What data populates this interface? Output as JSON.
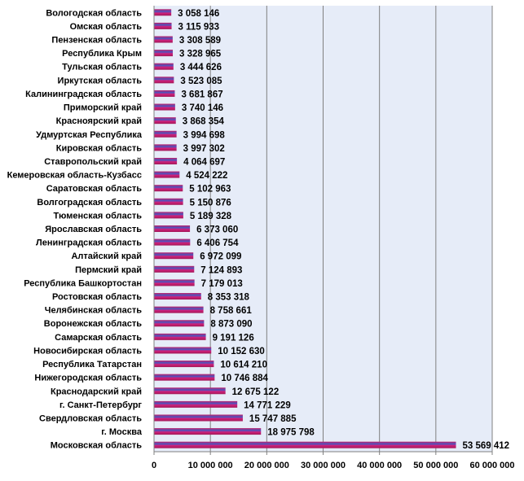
{
  "chart_data": {
    "type": "bar",
    "orientation": "horizontal",
    "title": "",
    "xlabel": "",
    "ylabel": "",
    "xlim": [
      0,
      60000000
    ],
    "grid": true,
    "legend": "none",
    "colors": {
      "bar_main": "#c0206a",
      "bar_highlight": "#4a55c0",
      "plot_bg": "#e6ecf8",
      "grid": "#808080"
    },
    "ticks": [
      "0",
      "10 000 000",
      "20 000 000",
      "30 000 000",
      "40 000 000",
      "50 000 000",
      "60 000 000"
    ],
    "tick_values": [
      0,
      10000000,
      20000000,
      30000000,
      40000000,
      50000000,
      60000000
    ],
    "categories": [
      "Вологодская  область",
      "Омская  область",
      "Пензенская  область",
      "Республика  Крым",
      "Тульская  область",
      "Иркутская  область",
      "Калининградская  область",
      "Приморский  край",
      "Красноярский  край",
      "Удмуртская  Республика",
      "Кировская  область",
      "Ставропольский  край",
      "Кемеровская  область-Кузбасс",
      "Саратовская  область",
      "Волгоградская  область",
      "Тюменская  область",
      "Ярославская  область",
      "Ленинградская  область",
      "Алтайский  край",
      "Пермский  край",
      "Республика  Башкортостан",
      "Ростовская  область",
      "Челябинская  область",
      "Воронежская  область",
      "Самарская  область",
      "Новосибирская  область",
      "Республика  Татарстан",
      "Нижегородская  область",
      "Краснодарский  край",
      "г. Санкт-Петербург",
      "Свердловская  область",
      "г. Москва",
      "Московская  область"
    ],
    "values": [
      3058146,
      3115933,
      3308589,
      3328965,
      3444626,
      3523085,
      3681867,
      3740146,
      3868354,
      3994698,
      3997302,
      4064697,
      4524222,
      5102963,
      5150876,
      5189328,
      6373060,
      6406754,
      6972099,
      7124893,
      7179013,
      8353318,
      8758661,
      8873090,
      9191126,
      10152630,
      10614210,
      10746884,
      12675122,
      14771229,
      15747885,
      18975798,
      53569412
    ],
    "value_labels": [
      "3 058 146",
      "3 115 933",
      "3 308 589",
      "3 328 965",
      "3 444 626",
      "3 523 085",
      "3 681 867",
      "3 740 146",
      "3 868 354",
      "3 994 698",
      "3 997 302",
      "4 064 697",
      "4 524 222",
      "5 102 963",
      "5 150 876",
      "5 189 328",
      "6 373 060",
      "6 406 754",
      "6 972 099",
      "7 124 893",
      "7 179 013",
      "8 353 318",
      "8 758 661",
      "8 873 090",
      "9 191 126",
      "10 152 630",
      "10 614 210",
      "10 746 884",
      "12 675 122",
      "14 771 229",
      "15 747 885",
      "18 975 798",
      "53 569 412"
    ]
  }
}
